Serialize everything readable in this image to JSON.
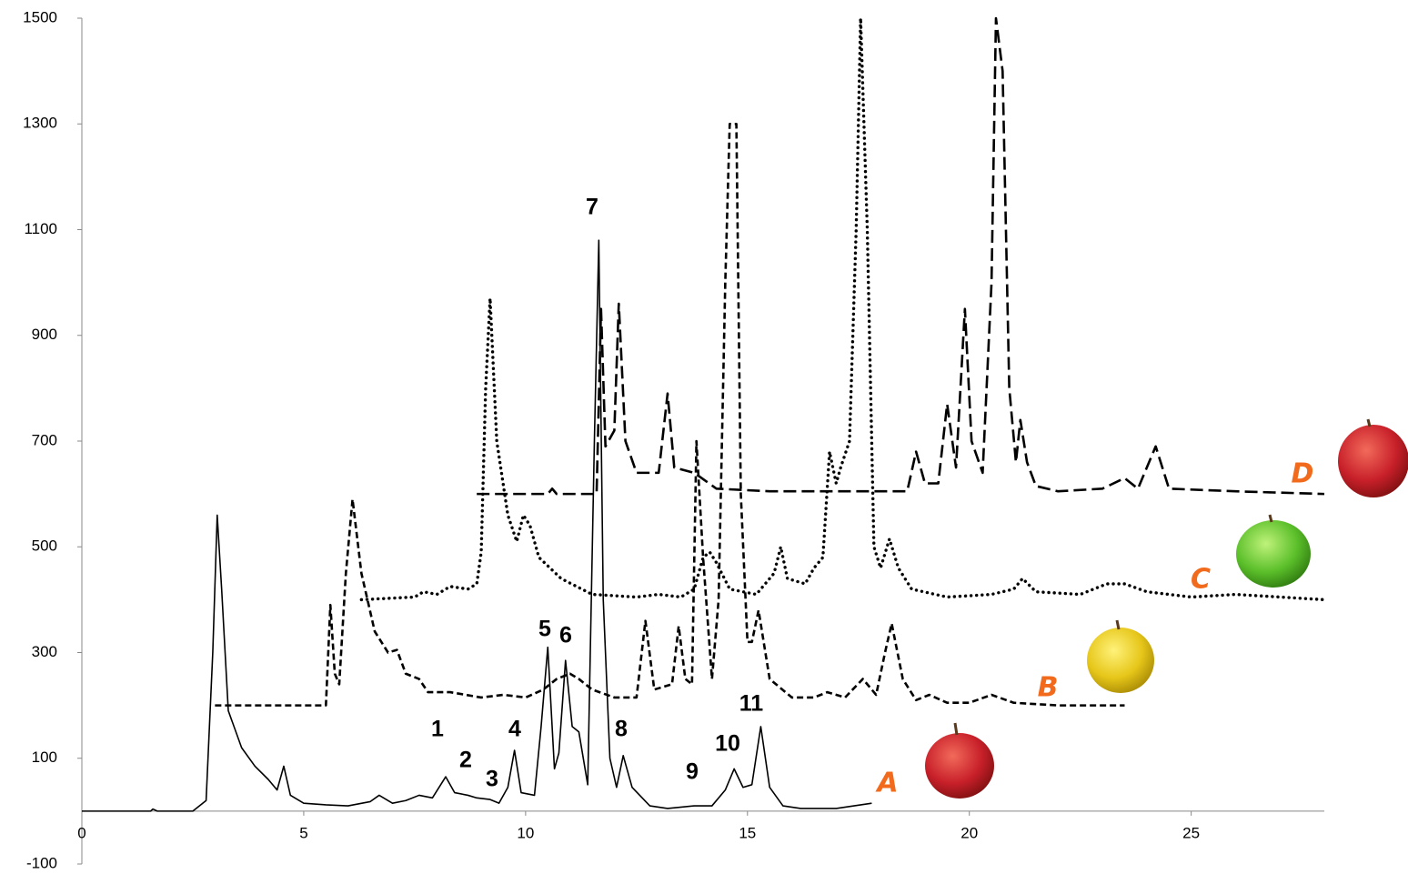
{
  "chart_data": {
    "type": "line",
    "xlim": [
      0,
      28
    ],
    "xticks": [
      0,
      5,
      10,
      15,
      20,
      25
    ],
    "ylim": [
      -100,
      1500
    ],
    "yticks": [
      -100,
      100,
      300,
      500,
      700,
      900,
      1100,
      1300,
      1500
    ],
    "peak_labels": [
      "1",
      "2",
      "3",
      "4",
      "5",
      "6",
      "7",
      "8",
      "9",
      "10",
      "11"
    ],
    "series": [
      {
        "name": "A",
        "color": "#000000",
        "style": "solid",
        "x": [
          0,
          1.55,
          1.6,
          1.7,
          2.5,
          2.8,
          2.95,
          3.05,
          3.15,
          3.3,
          3.6,
          3.9,
          4.2,
          4.4,
          4.55,
          4.7,
          5,
          5.5,
          6,
          6.5,
          6.7,
          7,
          7.3,
          7.6,
          7.9,
          8.2,
          8.4,
          8.7,
          8.9,
          9.2,
          9.4,
          9.6,
          9.75,
          9.9,
          10.2,
          10.35,
          10.5,
          10.65,
          10.75,
          10.9,
          11.05,
          11.2,
          11.4,
          11.55,
          11.65,
          11.75,
          11.9,
          12.05,
          12.2,
          12.4,
          12.8,
          13.2,
          13.8,
          14.2,
          14.5,
          14.7,
          14.9,
          15.1,
          15.3,
          15.5,
          15.8,
          16.2,
          17,
          17.8
        ],
        "values": [
          0,
          0,
          4,
          0,
          0,
          20,
          300,
          560,
          420,
          190,
          120,
          85,
          60,
          40,
          85,
          30,
          15,
          12,
          10,
          18,
          30,
          15,
          20,
          30,
          25,
          65,
          35,
          30,
          25,
          22,
          15,
          45,
          115,
          35,
          30,
          160,
          310,
          80,
          110,
          285,
          160,
          150,
          50,
          700,
          1080,
          400,
          100,
          45,
          105,
          45,
          10,
          5,
          10,
          10,
          40,
          80,
          45,
          50,
          160,
          45,
          10,
          5,
          5,
          15
        ]
      },
      {
        "name": "B",
        "color": "#000000",
        "style": "dashed",
        "x": [
          3,
          5.5,
          5.6,
          5.7,
          5.8,
          5.95,
          6.1,
          6.3,
          6.6,
          6.9,
          7.1,
          7.3,
          7.6,
          7.8,
          8.3,
          9,
          9.5,
          10,
          10.4,
          10.7,
          11,
          11.2,
          11.5,
          12,
          12.5,
          12.7,
          12.9,
          13.3,
          13.45,
          13.6,
          13.75,
          13.85,
          14,
          14.2,
          14.35,
          14.5,
          14.6,
          14.75,
          14.85,
          15,
          15.1,
          15.25,
          15.5,
          16,
          16.5,
          16.8,
          17.2,
          17.6,
          17.9,
          18.1,
          18.25,
          18.5,
          18.8,
          19.1,
          19.5,
          20,
          20.5,
          21,
          22,
          23.5
        ],
        "values": [
          200,
          200,
          390,
          260,
          240,
          450,
          590,
          450,
          340,
          300,
          305,
          260,
          250,
          225,
          225,
          215,
          220,
          215,
          230,
          250,
          260,
          250,
          230,
          215,
          215,
          360,
          230,
          240,
          350,
          250,
          240,
          700,
          480,
          250,
          400,
          1000,
          1300,
          1300,
          600,
          320,
          320,
          380,
          250,
          215,
          215,
          225,
          215,
          250,
          220,
          300,
          355,
          250,
          210,
          220,
          205,
          205,
          220,
          205,
          200,
          200
        ]
      },
      {
        "name": "C",
        "color": "#000000",
        "style": "dotted",
        "x": [
          6.3,
          7.5,
          7.7,
          8,
          8.3,
          8.7,
          8.9,
          9,
          9.1,
          9.2,
          9.35,
          9.6,
          9.8,
          9.95,
          10.1,
          10.3,
          10.8,
          11.5,
          12.5,
          13,
          13.5,
          13.8,
          14,
          14.15,
          14.3,
          14.6,
          15.2,
          15.6,
          15.75,
          15.9,
          16.3,
          16.5,
          16.7,
          16.85,
          17,
          17.1,
          17.3,
          17.45,
          17.55,
          17.7,
          17.85,
          18,
          18.2,
          18.4,
          18.7,
          19.5,
          20.5,
          21,
          21.2,
          21.5,
          22.5,
          23.1,
          23.5,
          24,
          25,
          26,
          28
        ],
        "values": [
          400,
          405,
          415,
          410,
          425,
          420,
          430,
          490,
          800,
          970,
          700,
          560,
          510,
          560,
          540,
          480,
          440,
          410,
          405,
          410,
          405,
          420,
          480,
          490,
          470,
          420,
          410,
          450,
          500,
          440,
          430,
          460,
          480,
          680,
          620,
          650,
          700,
          1100,
          1500,
          1100,
          500,
          460,
          515,
          460,
          420,
          405,
          410,
          420,
          440,
          415,
          410,
          430,
          430,
          415,
          405,
          410,
          400
        ]
      },
      {
        "name": "D",
        "color": "#000000",
        "style": "long-dash",
        "x": [
          8.9,
          10.5,
          10.6,
          10.7,
          11.6,
          11.7,
          11.8,
          12,
          12.1,
          12.25,
          12.5,
          13,
          13.2,
          13.35,
          13.8,
          14.3,
          15.5,
          17,
          18.6,
          18.8,
          19,
          19.3,
          19.5,
          19.7,
          19.9,
          20.05,
          20.3,
          20.5,
          20.6,
          20.75,
          20.9,
          21.05,
          21.15,
          21.3,
          21.5,
          22,
          23,
          23.5,
          23.8,
          24.2,
          24.5,
          26,
          28
        ],
        "values": [
          600,
          600,
          610,
          600,
          600,
          950,
          690,
          720,
          960,
          700,
          640,
          640,
          790,
          650,
          640,
          610,
          605,
          605,
          605,
          680,
          620,
          620,
          770,
          650,
          950,
          700,
          640,
          1000,
          1500,
          1400,
          800,
          660,
          740,
          660,
          615,
          605,
          610,
          630,
          610,
          690,
          610,
          605,
          600
        ]
      }
    ]
  }
}
